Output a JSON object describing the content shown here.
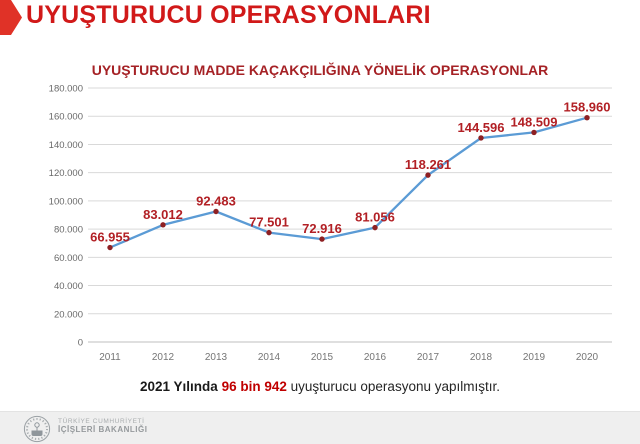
{
  "header": {
    "title": "UYUŞTURUCU OPERASYONLARI",
    "accent_color": "#e03227",
    "title_color": "#d11919"
  },
  "chart_data": {
    "type": "line",
    "title": "UYUŞTURUCU MADDE KAÇAKÇILIĞINA YÖNELİK OPERASYONLAR",
    "categories": [
      "2011",
      "2012",
      "2013",
      "2014",
      "2015",
      "2016",
      "2017",
      "2018",
      "2019",
      "2020"
    ],
    "values": [
      66955,
      83012,
      92483,
      77501,
      72916,
      81056,
      118261,
      144596,
      148509,
      158960
    ],
    "point_labels": [
      "66.955",
      "83.012",
      "92.483",
      "77.501",
      "72.916",
      "81.056",
      "118.261",
      "144.596",
      "148.509",
      "158.960"
    ],
    "xlabel": "",
    "ylabel": "",
    "ylim": [
      0,
      180000
    ],
    "ytick_labels": [
      "0",
      "20.000",
      "40.000",
      "60.000",
      "80.000",
      "100.000",
      "120.000",
      "140.000",
      "160.000",
      "180.000"
    ],
    "grid": true,
    "legend": "none",
    "line_color": "#5b9bd5",
    "marker_color": "#8e2023",
    "label_color": "#b22025",
    "gridline_color": "#d9d9d9",
    "axis_line_color": "#bfbfbf"
  },
  "footnote": {
    "prefix": "2021 Yılında",
    "highlight": "96 bin 942",
    "suffix": "uyuşturucu operasyonu yapılmıştır."
  },
  "footer": {
    "org_line1": "TÜRKİYE CUMHURİYETİ",
    "org_line2": "İÇİŞLERİ BAKANLIĞI"
  }
}
